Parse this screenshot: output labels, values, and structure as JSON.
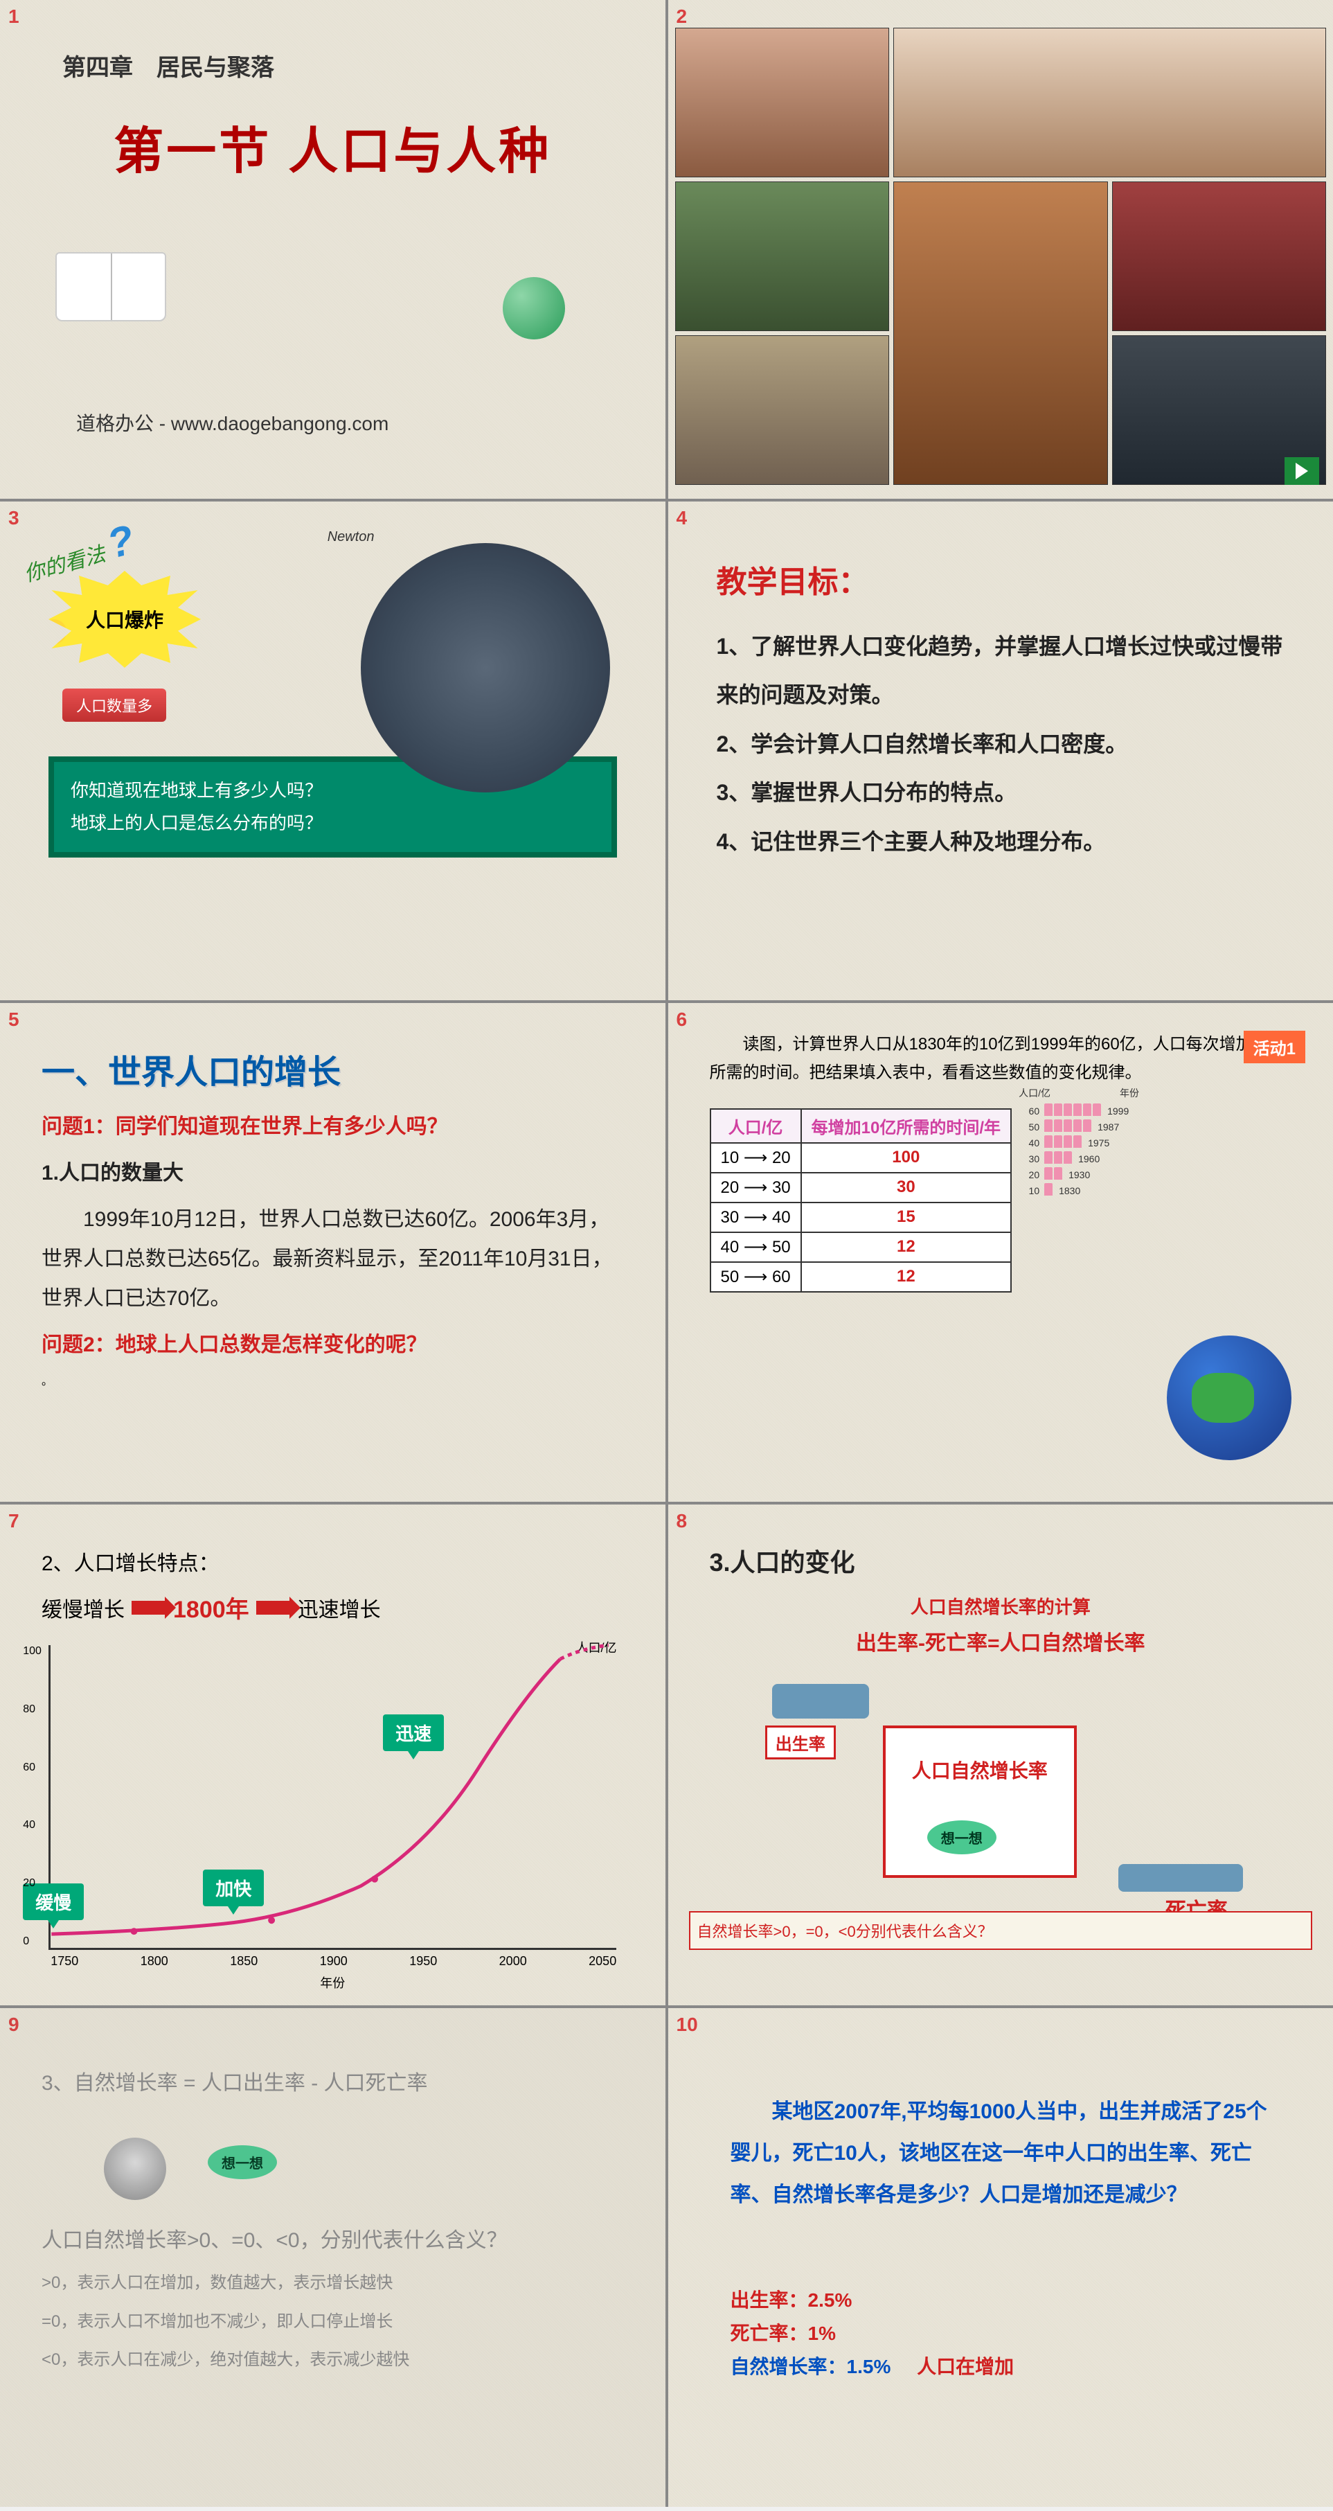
{
  "slide1": {
    "num": "1",
    "chapter": "第四章　居民与聚落",
    "title": "第一节 人口与人种",
    "footer": "道格办公 - www.daogebangong.com"
  },
  "slide2": {
    "num": "2"
  },
  "slide3": {
    "num": "3",
    "opinion": "你的看法",
    "burst": "人口爆炸",
    "banner": "人口数量多",
    "newton": "Newton",
    "q1": "你知道现在地球上有多少人吗？",
    "q2": "地球上的人口是怎么分布的吗？"
  },
  "slide4": {
    "num": "4",
    "title": "教学目标：",
    "goals": [
      "1、了解世界人口变化趋势，并掌握人口增长过快或过慢带来的问题及对策。",
      "2、学会计算人口自然增长率和人口密度。",
      "3、掌握世界人口分布的特点。",
      "4、记住世界三个主要人种及地理分布。"
    ]
  },
  "slide5": {
    "num": "5",
    "header": "一、世界人口的增长",
    "q1_label": "问题1：",
    "q1": "同学们知道现在世界上有多少人吗？",
    "sub1": "1.人口的数量大",
    "body": "1999年10月12日，世界人口总数已达60亿。2006年3月，世界人口总数已达65亿。最新资料显示，至2011年10月31日，世界人口已达70亿。",
    "q2_label": "问题2：",
    "q2": "地球上人口总数是怎样变化的呢？"
  },
  "slide6": {
    "num": "6",
    "activity": "活动1",
    "intro": "读图，计算世界人口从1830年的10亿到1999年的60亿，人口每次增加10亿所需的时间。把结果填入表中，看看这些数值的变化规律。",
    "th1": "人口/亿",
    "th2": "每增加10亿所需的时间/年",
    "rows": [
      {
        "range": "10 ⟶ 20",
        "years": "100"
      },
      {
        "range": "20 ⟶ 30",
        "years": "30"
      },
      {
        "range": "30 ⟶ 40",
        "years": "15"
      },
      {
        "range": "40 ⟶ 50",
        "years": "12"
      },
      {
        "range": "50 ⟶ 60",
        "years": "12"
      }
    ],
    "bar_y_label": "人口/亿",
    "bar_year_label": "年份",
    "bars": [
      {
        "count": 6,
        "val": "60",
        "year": "1999"
      },
      {
        "count": 5,
        "val": "50",
        "year": "1987"
      },
      {
        "count": 4,
        "val": "40",
        "year": "1975"
      },
      {
        "count": 3,
        "val": "30",
        "year": "1960"
      },
      {
        "count": 2,
        "val": "20",
        "year": "1930"
      },
      {
        "count": 1,
        "val": "10",
        "year": "1830"
      }
    ]
  },
  "slide7": {
    "num": "7",
    "title": "2、人口增长特点：",
    "seq_slow": "缓慢增长",
    "seq_year": "1800年",
    "seq_fast": "迅速增长",
    "y_title": "人口/亿",
    "x_title": "年份",
    "labels": {
      "slow": "缓慢",
      "mid": "加快",
      "fast": "迅速"
    },
    "x_ticks": [
      "1750",
      "1800",
      "1850",
      "1900",
      "1950",
      "2000",
      "2050"
    ],
    "y_ticks": [
      "0",
      "20",
      "40",
      "60",
      "80",
      "100"
    ],
    "curve_color": "#d82878",
    "label_bg": "#00a878"
  },
  "slide8": {
    "num": "8",
    "title": "3.人口的变化",
    "subtitle": "人口自然增长率的计算",
    "formula": "出生率-死亡率=人口自然增长率",
    "in_label": "出生率",
    "out_label": "死亡率",
    "tank_label": "人口自然增长率",
    "think": "想一想",
    "note": "自然增长率>0，=0，<0分别代表什么含义？"
  },
  "slide9": {
    "num": "9",
    "title": "3、自然增长率 = 人口出生率 - 人口死亡率",
    "think": "想一想",
    "q": "人口自然增长率>0、=0、<0，分别代表什么含义？",
    "a1": ">0，表示人口在增加，数值越大，表示增长越快",
    "a2": "=0，表示人口不增加也不减少，即人口停止增长",
    "a3": "<0，表示人口在减少，绝对值越大，表示减少越快"
  },
  "slide10": {
    "num": "10",
    "body": "某地区2007年,平均每1000人当中，出生并成活了25个婴儿，死亡10人，该地区在这一年中人口的出生率、死亡率、自然增长率各是多少？人口是增加还是减少？",
    "r1_label": "出生率：",
    "r1": "2.5%",
    "r2_label": "死亡率：",
    "r2": "1%",
    "r3_label": "自然增长率：",
    "r3": "1.5%",
    "r3_note": "人口在增加"
  }
}
